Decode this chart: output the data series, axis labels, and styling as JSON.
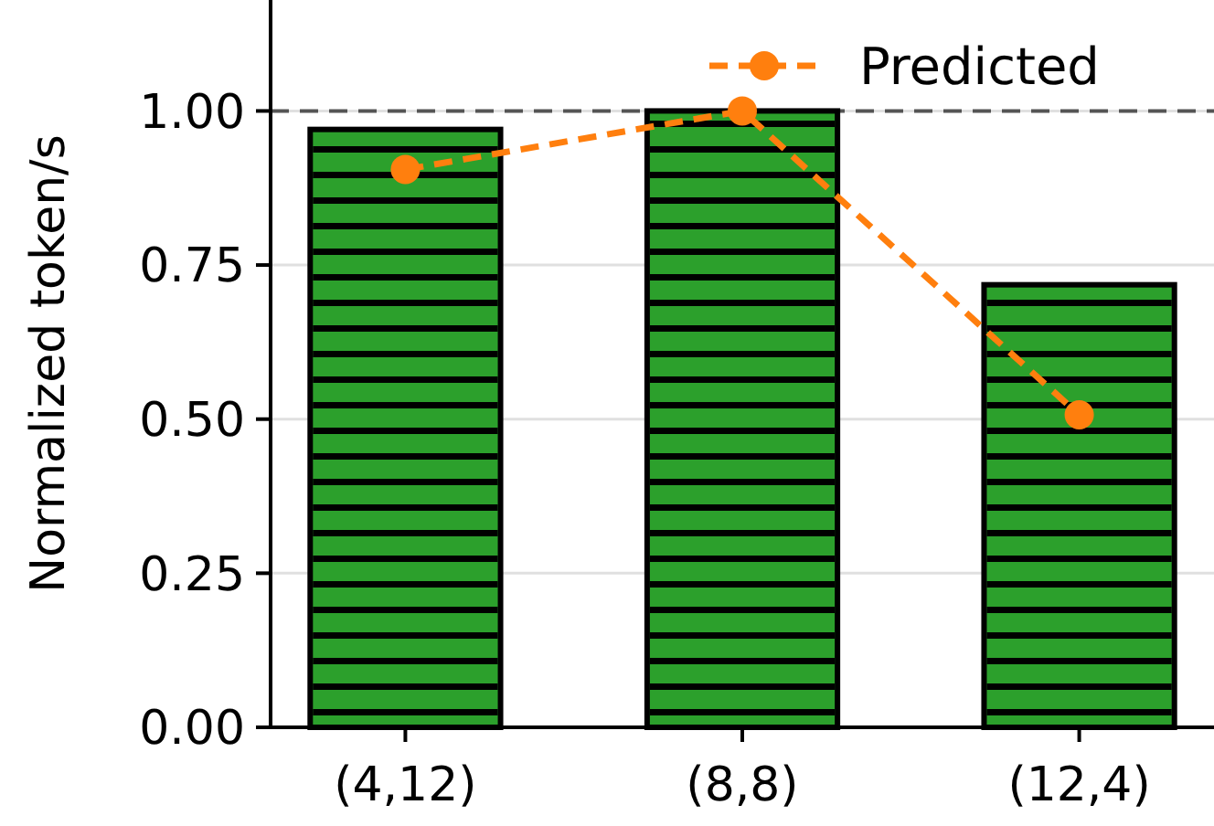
{
  "chart_data": {
    "type": "bar",
    "ylabel": "Normalized token/s",
    "categories": [
      "(4,12)",
      "(8,8)",
      "(12,4)"
    ],
    "series": [
      {
        "color": "#2ca02c",
        "values": [
          0.97,
          1.0,
          0.718
        ]
      },
      {
        "type": "line",
        "name": "Predicted",
        "color": "#ff7f0e",
        "values": [
          0.905,
          1.0,
          0.507
        ],
        "marker": "circle",
        "line_style": "dashed"
      }
    ],
    "ylim": [
      0,
      1.18
    ],
    "yticks": [
      {
        "value": 0,
        "label": "0.00"
      },
      {
        "value": 0.25,
        "label": "0.25"
      },
      {
        "value": 0.5,
        "label": "0.50"
      },
      {
        "value": 0.75,
        "label": "0.75"
      },
      {
        "value": 1,
        "label": "1.00"
      }
    ],
    "grid": "y",
    "legend": "top right",
    "ref_lines": [
      {
        "axis": "y",
        "value": 1,
        "color": "#555555",
        "line_style": "dashed"
      }
    ]
  }
}
